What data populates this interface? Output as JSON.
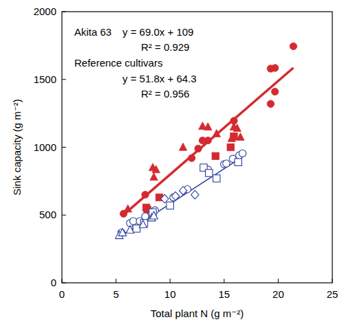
{
  "chart_data": {
    "type": "scatter",
    "x_label": "Total plant N (g m⁻²)",
    "y_label": "Sink capacity (g m⁻²)",
    "xlim": [
      0,
      25
    ],
    "xticks": [
      0,
      5,
      10,
      15,
      20,
      25
    ],
    "ylim": [
      0,
      2000
    ],
    "yticks": [
      0,
      500,
      1000,
      1500,
      2000
    ],
    "annotations": [
      "y = 69.0x + 109",
      "R² = 0.929",
      "y = 51.8x + 64.3",
      "R² = 0.956"
    ],
    "series": [
      {
        "color": "#d42a2f",
        "marker": "circle",
        "x": [
          5.7,
          7.7,
          12.0,
          12.6,
          13.0,
          13.5,
          15.9,
          19.3,
          19.7,
          19.3,
          19.7,
          21.4
        ],
        "values": [
          510,
          650,
          920,
          990,
          1050,
          1050,
          1195,
          1580,
          1585,
          1320,
          1410,
          1745
        ]
      },
      {
        "color": "#d42a2f",
        "marker": "triangle",
        "x": [
          6.1,
          8.4,
          8.7,
          8.5,
          11.2,
          13.0,
          13.5,
          14.3,
          15.7,
          15.9,
          16.2,
          16.5
        ],
        "values": [
          545,
          850,
          835,
          780,
          1000,
          1155,
          1150,
          1100,
          1065,
          1150,
          1140,
          1075
        ]
      },
      {
        "color": "#d42a2f",
        "marker": "square",
        "x": [
          7.8,
          7.9,
          9.0,
          14.2,
          15.6,
          15.9
        ],
        "values": [
          555,
          540,
          630,
          935,
          1000,
          1080
        ]
      },
      {
        "color": "#2b3f9c",
        "marker": "circle-open",
        "x": [
          5.5,
          6.3,
          6.6,
          7.2,
          7.7,
          8.6,
          10.3,
          11.6,
          13.5,
          15.0,
          15.2,
          15.8,
          16.4,
          16.7
        ],
        "values": [
          370,
          440,
          455,
          455,
          490,
          535,
          630,
          690,
          835,
          875,
          880,
          915,
          940,
          955
        ]
      },
      {
        "color": "#2b3f9c",
        "marker": "square-open",
        "x": [
          6.9,
          7.6,
          8.4,
          10.0,
          13.1,
          13.6,
          14.3,
          16.3
        ],
        "values": [
          400,
          440,
          520,
          570,
          850,
          810,
          770,
          890
        ]
      },
      {
        "color": "#2b3f9c",
        "marker": "triangle-open",
        "x": [
          5.3,
          5.6,
          6.3,
          7.5,
          8.3,
          8.5
        ],
        "values": [
          350,
          370,
          390,
          430,
          480,
          495
        ]
      },
      {
        "color": "#2b3f9c",
        "marker": "diamond-open",
        "x": [
          9.5,
          10.5,
          11.2,
          12.3
        ],
        "values": [
          620,
          640,
          680,
          650
        ]
      },
      {
        "name": "Akita 63",
        "type": "line",
        "color": "#d42a2f",
        "x": [
          5.7,
          21.4
        ],
        "values": [
          502,
          1586
        ]
      },
      {
        "name": "Reference cultivars",
        "type": "line",
        "color": "#2b3f9c",
        "x": [
          5.3,
          16.8
        ],
        "values": [
          339,
          935
        ]
      }
    ]
  }
}
